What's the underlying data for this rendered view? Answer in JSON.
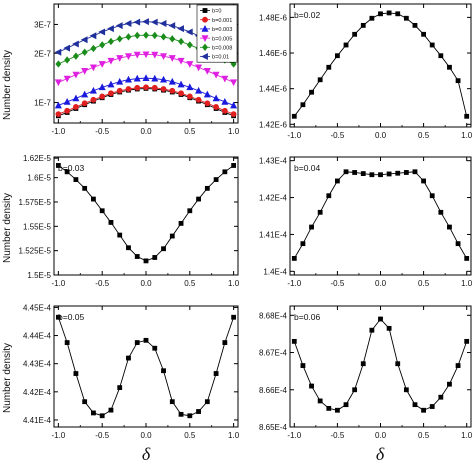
{
  "figure": {
    "y_axis_label": "Number density",
    "x_axis_symbol": "δ"
  },
  "chart_data": [
    {
      "type": "line",
      "panel": "top-left",
      "y_scale": "log",
      "ylim": [
        7.5e-08,
        4e-07
      ],
      "xlim": [
        -1.05,
        1.05
      ],
      "x_ticks": [
        "-1.0",
        "-0.5",
        "0.0",
        "0.5",
        "1.0"
      ],
      "y_ticks": [
        {
          "value": 1e-07,
          "label": "1E-7"
        },
        {
          "value": 2e-07,
          "label": "2E-7"
        },
        {
          "value": 3e-07,
          "label": "3E-7"
        }
      ],
      "ylabel": "Number density",
      "legend_position": "top-right",
      "x": [
        -1.0,
        -0.9,
        -0.8,
        -0.7,
        -0.6,
        -0.5,
        -0.4,
        -0.3,
        -0.2,
        -0.1,
        0.0,
        0.1,
        0.2,
        0.3,
        0.4,
        0.5,
        0.6,
        0.7,
        0.8,
        0.9,
        1.0
      ],
      "series": [
        {
          "name": "b=0",
          "color": "#000000",
          "marker": "square",
          "values": [
            8.3e-08,
            8.7e-08,
            9.2e-08,
            9.7e-08,
            1.02e-07,
            1.07e-07,
            1.12e-07,
            1.16e-07,
            1.19e-07,
            1.21e-07,
            1.22e-07,
            1.21e-07,
            1.19e-07,
            1.16e-07,
            1.12e-07,
            1.07e-07,
            1.02e-07,
            9.7e-08,
            9.2e-08,
            8.7e-08,
            8.3e-08
          ]
        },
        {
          "name": "b=0.001",
          "color": "#e02020",
          "marker": "circle",
          "values": [
            8.5e-08,
            8.9e-08,
            9.4e-08,
            9.9e-08,
            1.04e-07,
            1.09e-07,
            1.14e-07,
            1.18e-07,
            1.21e-07,
            1.23e-07,
            1.24e-07,
            1.23e-07,
            1.21e-07,
            1.18e-07,
            1.14e-07,
            1.09e-07,
            1.04e-07,
            9.9e-08,
            9.4e-08,
            8.9e-08,
            8.5e-08
          ]
        },
        {
          "name": "b=0.003",
          "color": "#1a1adc",
          "marker": "triangle-up",
          "values": [
            9.6e-08,
            1.01e-07,
            1.06e-07,
            1.12e-07,
            1.18e-07,
            1.24e-07,
            1.29e-07,
            1.34e-07,
            1.38e-07,
            1.4e-07,
            1.41e-07,
            1.4e-07,
            1.38e-07,
            1.34e-07,
            1.29e-07,
            1.24e-07,
            1.18e-07,
            1.12e-07,
            1.06e-07,
            1.01e-07,
            9.6e-08
          ]
        },
        {
          "name": "b=0.005",
          "color": "#e020e0",
          "marker": "triangle-down",
          "values": [
            1.33e-07,
            1.4e-07,
            1.48e-07,
            1.56e-07,
            1.64e-07,
            1.72e-07,
            1.8e-07,
            1.87e-07,
            1.92e-07,
            1.96e-07,
            1.97e-07,
            1.96e-07,
            1.92e-07,
            1.87e-07,
            1.8e-07,
            1.72e-07,
            1.64e-07,
            1.56e-07,
            1.48e-07,
            1.4e-07,
            1.33e-07
          ]
        },
        {
          "name": "b=0.008",
          "color": "#1a8c1a",
          "marker": "diamond",
          "values": [
            1.72e-07,
            1.82e-07,
            1.92e-07,
            2.03e-07,
            2.14e-07,
            2.25e-07,
            2.36e-07,
            2.45e-07,
            2.52e-07,
            2.57e-07,
            2.58e-07,
            2.57e-07,
            2.52e-07,
            2.45e-07,
            2.36e-07,
            2.25e-07,
            2.14e-07,
            2.03e-07,
            1.92e-07,
            1.82e-07,
            1.72e-07
          ]
        },
        {
          "name": "b=0.01",
          "color": "#1f2f9c",
          "marker": "triangle-left",
          "values": [
            2.03e-07,
            2.15e-07,
            2.28e-07,
            2.42e-07,
            2.56e-07,
            2.7e-07,
            2.83e-07,
            2.95e-07,
            3.04e-07,
            3.1e-07,
            3.12e-07,
            3.1e-07,
            3.04e-07,
            2.95e-07,
            2.83e-07,
            2.7e-07,
            2.56e-07,
            2.42e-07,
            2.28e-07,
            2.15e-07,
            2.03e-07
          ]
        }
      ]
    },
    {
      "type": "line",
      "panel": "top-right",
      "annotation": "b=0.02",
      "ylim": [
        1.4185e-06,
        1.4875e-06
      ],
      "xlim": [
        -1.05,
        1.05
      ],
      "x_ticks": [
        "-1.0",
        "-0.5",
        "0.0",
        "0.5",
        "1.0"
      ],
      "y_ticks": [
        {
          "value": 1.42e-06,
          "label": "1.42E-6"
        },
        {
          "value": 1.44e-06,
          "label": "1.44E-6"
        },
        {
          "value": 1.46e-06,
          "label": "1.46E-6"
        },
        {
          "value": 1.48e-06,
          "label": "1.48E-6"
        }
      ],
      "x": [
        -1.0,
        -0.9,
        -0.8,
        -0.7,
        -0.6,
        -0.5,
        -0.4,
        -0.3,
        -0.2,
        -0.1,
        0.0,
        0.1,
        0.2,
        0.3,
        0.4,
        0.5,
        0.6,
        0.7,
        0.8,
        0.9,
        1.0
      ],
      "series": [
        {
          "color": "#000000",
          "marker": "square",
          "values": [
            1.4245e-06,
            1.431e-06,
            1.438e-06,
            1.445e-06,
            1.452e-06,
            1.4585e-06,
            1.4645e-06,
            1.4705e-06,
            1.4755e-06,
            1.4795e-06,
            1.482e-06,
            1.4825e-06,
            1.482e-06,
            1.4795e-06,
            1.4755e-06,
            1.4705e-06,
            1.4645e-06,
            1.4585e-06,
            1.452e-06,
            1.4445e-06,
            1.4245e-06
          ]
        }
      ]
    },
    {
      "type": "line",
      "panel": "middle-left",
      "annotation": "b=0.03",
      "ylim": [
        1.5e-05,
        1.6212e-05
      ],
      "xlim": [
        -1.05,
        1.05
      ],
      "x_ticks": [
        "-1.0",
        "-0.5",
        "0.0",
        "0.5",
        "1.0"
      ],
      "y_ticks": [
        {
          "value": 1.5e-05,
          "label": "1.5E-5"
        },
        {
          "value": 1.525e-05,
          "label": "1.525E-5"
        },
        {
          "value": 1.55e-05,
          "label": "1.55E-5"
        },
        {
          "value": 1.575e-05,
          "label": "1.575E-5"
        },
        {
          "value": 1.6e-05,
          "label": "1.6E-5"
        },
        {
          "value": 1.62e-05,
          "label": "1.62E-5"
        }
      ],
      "x": [
        -1.0,
        -0.9,
        -0.8,
        -0.7,
        -0.6,
        -0.5,
        -0.4,
        -0.3,
        -0.2,
        -0.1,
        0.0,
        0.1,
        0.2,
        0.3,
        0.4,
        0.5,
        0.6,
        0.7,
        0.8,
        0.9,
        1.0
      ],
      "series": [
        {
          "color": "#000000",
          "marker": "square",
          "values": [
            1.6125e-05,
            1.606e-05,
            1.598e-05,
            1.589e-05,
            1.578e-05,
            1.566e-05,
            1.554e-05,
            1.541e-05,
            1.528e-05,
            1.519e-05,
            1.5145e-05,
            1.518e-05,
            1.527e-05,
            1.54e-05,
            1.553e-05,
            1.566e-05,
            1.578e-05,
            1.589e-05,
            1.598e-05,
            1.606e-05,
            1.6125e-05
          ]
        }
      ]
    },
    {
      "type": "line",
      "panel": "middle-right",
      "annotation": "b=0.04",
      "ylim": [
        0.0001399,
        0.0001431
      ],
      "xlim": [
        -1.05,
        1.05
      ],
      "x_ticks": [
        "-1.0",
        "-0.5",
        "0.0",
        "0.5",
        "1.0"
      ],
      "y_ticks": [
        {
          "value": 0.00014,
          "label": "1.4E-4"
        },
        {
          "value": 0.000141,
          "label": "1.41E-4"
        },
        {
          "value": 0.000142,
          "label": "1.42E-4"
        },
        {
          "value": 0.000143,
          "label": "1.43E-4"
        }
      ],
      "x": [
        -1.0,
        -0.9,
        -0.8,
        -0.7,
        -0.6,
        -0.5,
        -0.4,
        -0.3,
        -0.2,
        -0.1,
        0.0,
        0.1,
        0.2,
        0.3,
        0.4,
        0.5,
        0.6,
        0.7,
        0.8,
        0.9,
        1.0
      ],
      "series": [
        {
          "color": "#000000",
          "marker": "square",
          "values": [
            0.00014035,
            0.00014075,
            0.0001412,
            0.0001416,
            0.00014205,
            0.00014245,
            0.0001427,
            0.00014268,
            0.00014265,
            0.00014262,
            0.00014262,
            0.00014264,
            0.00014266,
            0.00014268,
            0.0001427,
            0.00014245,
            0.00014205,
            0.0001416,
            0.0001412,
            0.00014075,
            0.00014035
          ]
        }
      ]
    },
    {
      "type": "line",
      "panel": "bottom-left",
      "annotation": "b=0.05",
      "ylim": [
        0.00044075,
        0.00044505
      ],
      "xlim": [
        -1.05,
        1.05
      ],
      "x_ticks": [
        "-1.0",
        "-0.5",
        "0.0",
        "0.5",
        "1.0"
      ],
      "y_ticks": [
        {
          "value": 0.000441,
          "label": "4.41E-4"
        },
        {
          "value": 0.000442,
          "label": "4.42E-4"
        },
        {
          "value": 0.000443,
          "label": "4.43E-4"
        },
        {
          "value": 0.000444,
          "label": "4.44E-4"
        },
        {
          "value": 0.000445,
          "label": "4.45E-4"
        }
      ],
      "x": [
        -1.0,
        -0.9,
        -0.8,
        -0.7,
        -0.6,
        -0.5,
        -0.4,
        -0.3,
        -0.2,
        -0.1,
        0.0,
        0.1,
        0.2,
        0.3,
        0.4,
        0.5,
        0.6,
        0.7,
        0.8,
        0.9,
        1.0
      ],
      "series": [
        {
          "color": "#000000",
          "marker": "square",
          "values": [
            0.00044465,
            0.00044375,
            0.00044265,
            0.00044165,
            0.00044125,
            0.00044115,
            0.00044135,
            0.00044215,
            0.0004432,
            0.00044375,
            0.00044383,
            0.00044355,
            0.00044275,
            0.00044165,
            0.0004412,
            0.00044115,
            0.0004413,
            0.00044165,
            0.00044265,
            0.00044375,
            0.00044465
          ]
        }
      ]
    },
    {
      "type": "line",
      "panel": "bottom-right",
      "annotation": "b=0.06",
      "ylim": [
        0.000865,
        0.00086825
      ],
      "xlim": [
        -1.05,
        1.05
      ],
      "x_ticks": [
        "-1.0",
        "-0.5",
        "0.0",
        "0.5",
        "1.0"
      ],
      "y_ticks": [
        {
          "value": 0.000865,
          "label": "8.65E-4"
        },
        {
          "value": 0.000866,
          "label": "8.66E-4"
        },
        {
          "value": 0.000867,
          "label": "8.67E-4"
        },
        {
          "value": 0.000868,
          "label": "8.68E-4"
        }
      ],
      "x": [
        -1.0,
        -0.9,
        -0.8,
        -0.7,
        -0.6,
        -0.5,
        -0.4,
        -0.3,
        -0.2,
        -0.1,
        0.0,
        0.1,
        0.2,
        0.3,
        0.4,
        0.5,
        0.6,
        0.7,
        0.8,
        0.9,
        1.0
      ],
      "series": [
        {
          "color": "#000000",
          "marker": "square",
          "values": [
            0.0008673,
            0.00086665,
            0.0008661,
            0.0008657,
            0.0008655,
            0.00086545,
            0.0008656,
            0.000866,
            0.0008667,
            0.0008676,
            0.0008679,
            0.00086765,
            0.0008667,
            0.000866,
            0.0008656,
            0.00086545,
            0.00086555,
            0.0008658,
            0.00086615,
            0.00086665,
            0.0008673
          ]
        }
      ]
    }
  ]
}
